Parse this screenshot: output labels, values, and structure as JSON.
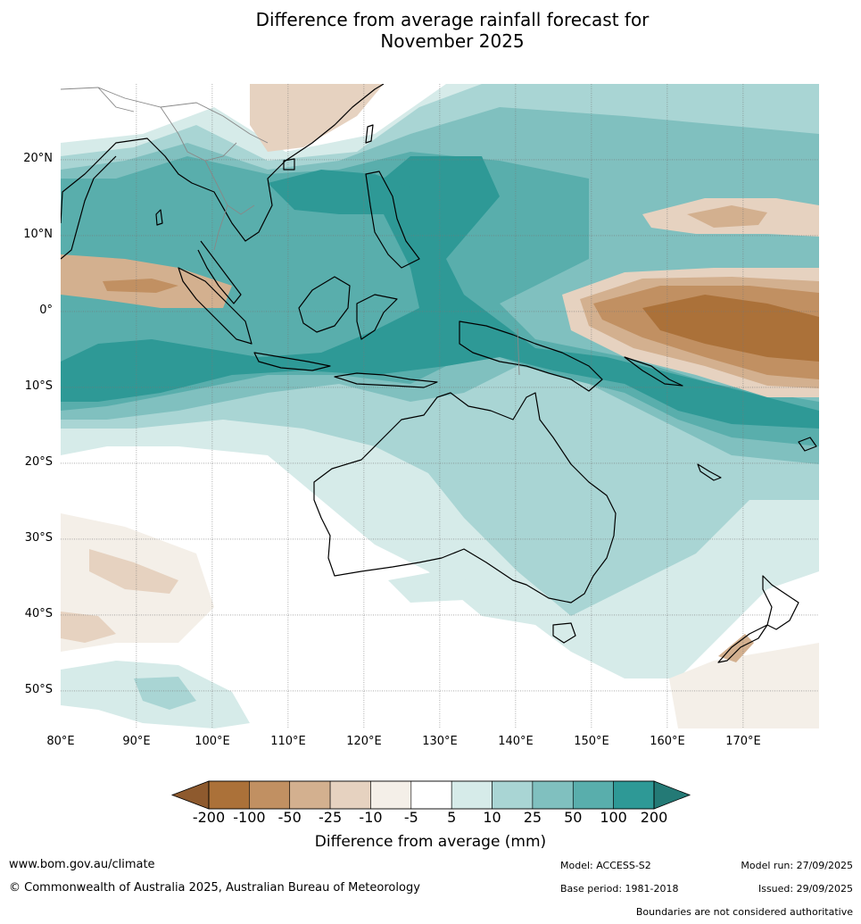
{
  "title": {
    "line1": "Difference from average rainfall forecast for",
    "line2": "November 2025"
  },
  "map": {
    "extent": {
      "lon_min": 80,
      "lon_max": 180,
      "lat_min": -55,
      "lat_max": 30
    },
    "lat_labels": [
      {
        "lat": 20,
        "label": "20°N"
      },
      {
        "lat": 10,
        "label": "10°N"
      },
      {
        "lat": 0,
        "label": "0°"
      },
      {
        "lat": -10,
        "label": "10°S"
      },
      {
        "lat": -20,
        "label": "20°S"
      },
      {
        "lat": -30,
        "label": "30°S"
      },
      {
        "lat": -40,
        "label": "40°S"
      },
      {
        "lat": -50,
        "label": "50°S"
      }
    ],
    "lon_labels": [
      {
        "lon": 80,
        "label": "80°E"
      },
      {
        "lon": 90,
        "label": "90°E"
      },
      {
        "lon": 100,
        "label": "100°E"
      },
      {
        "lon": 110,
        "label": "110°E"
      },
      {
        "lon": 120,
        "label": "120°E"
      },
      {
        "lon": 130,
        "label": "130°E"
      },
      {
        "lon": 140,
        "label": "140°E"
      },
      {
        "lon": 150,
        "label": "150°E"
      },
      {
        "lon": 160,
        "label": "160°E"
      },
      {
        "lon": 170,
        "label": "170°E"
      }
    ]
  },
  "colorbar": {
    "ticks": [
      "-200",
      "-100",
      "-50",
      "-25",
      "-10",
      "-5",
      "5",
      "10",
      "25",
      "50",
      "100",
      "200"
    ],
    "colors": [
      "#ab7139",
      "#c19062",
      "#d3b08f",
      "#e6d2c0",
      "#f4efe8",
      "#ffffff",
      "#d6ebe9",
      "#a9d5d4",
      "#80c0bf",
      "#59aeac",
      "#2e9996"
    ],
    "extend_low_color": "#8e5a2e",
    "extend_high_color": "#247a76",
    "label": "Difference from average (mm)"
  },
  "footer": {
    "website": "www.bom.gov.au/climate",
    "copyright": "© Commonwealth of Australia 2025, Australian Bureau of Meteorology",
    "model": "Model: ACCESS-S2",
    "base_period": "Base period: 1981-2018",
    "model_run": "Model run: 27/09/2025",
    "issued": "Issued: 29/09/2025",
    "disclaimer": "Boundaries are not considered authoritative"
  }
}
